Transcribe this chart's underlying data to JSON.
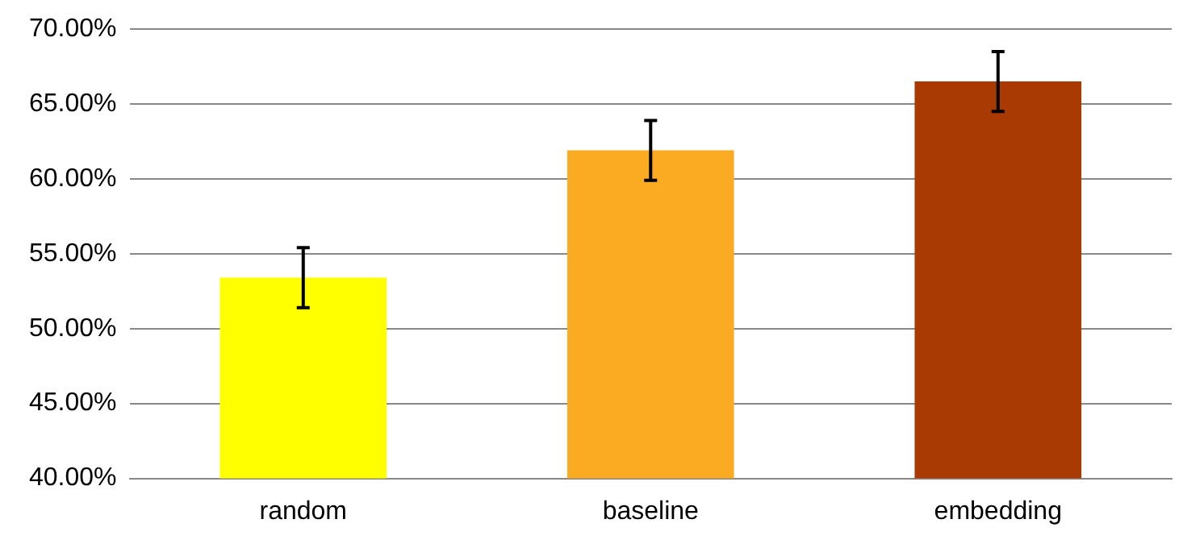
{
  "chart_data": {
    "type": "bar",
    "categories": [
      "random",
      "baseline",
      "embedding"
    ],
    "values": [
      53.4,
      61.9,
      66.5
    ],
    "colors": [
      "#ffff00",
      "#fbab22",
      "#aa3a04"
    ],
    "errors": [
      2,
      2,
      2
    ],
    "ylim": [
      40,
      70
    ],
    "yticks": [
      {
        "value": 40,
        "label": "40.00%"
      },
      {
        "value": 45,
        "label": "45.00%"
      },
      {
        "value": 50,
        "label": "50.00%"
      },
      {
        "value": 55,
        "label": "55.00%"
      },
      {
        "value": 60,
        "label": "60.00%"
      },
      {
        "value": 65,
        "label": "65.00%"
      },
      {
        "value": 70,
        "label": "70.00%"
      }
    ],
    "grid": "y"
  }
}
